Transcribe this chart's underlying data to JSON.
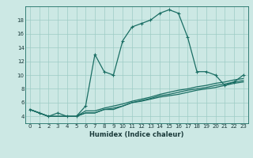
{
  "xlabel": "Humidex (Indice chaleur)",
  "background_color": "#cce8e4",
  "line_color": "#1a6e64",
  "grid_color": "#9eccc5",
  "xlim": [
    -0.5,
    23.5
  ],
  "ylim": [
    3.0,
    20.0
  ],
  "yticks": [
    4,
    6,
    8,
    10,
    12,
    14,
    16,
    18
  ],
  "xticks": [
    0,
    1,
    2,
    3,
    4,
    5,
    6,
    7,
    8,
    9,
    10,
    11,
    12,
    13,
    14,
    15,
    16,
    17,
    18,
    19,
    20,
    21,
    22,
    23
  ],
  "series1_x": [
    0,
    1,
    2,
    3,
    4,
    5,
    6,
    7,
    8,
    9,
    10,
    11,
    12,
    13,
    14,
    15,
    16,
    17,
    18,
    19,
    20,
    21,
    22,
    23
  ],
  "series1_y": [
    5.0,
    4.5,
    4.0,
    4.5,
    4.0,
    4.0,
    5.5,
    13.0,
    10.5,
    10.0,
    15.0,
    17.0,
    17.5,
    18.0,
    19.0,
    19.5,
    19.0,
    15.5,
    10.5,
    10.5,
    10.0,
    8.5,
    9.0,
    10.0
  ],
  "series2_x": [
    0,
    1,
    2,
    3,
    4,
    5,
    6,
    7,
    8,
    9,
    10,
    11,
    12,
    13,
    14,
    15,
    16,
    17,
    18,
    19,
    20,
    21,
    22,
    23
  ],
  "series2_y": [
    5.0,
    4.5,
    4.0,
    4.0,
    4.0,
    4.0,
    4.5,
    4.5,
    5.0,
    5.0,
    5.5,
    6.0,
    6.2,
    6.5,
    6.8,
    7.0,
    7.2,
    7.5,
    7.8,
    8.0,
    8.2,
    8.5,
    8.8,
    9.0
  ],
  "series3_x": [
    0,
    1,
    2,
    3,
    4,
    5,
    6,
    7,
    8,
    9,
    10,
    11,
    12,
    13,
    14,
    15,
    16,
    17,
    18,
    19,
    20,
    21,
    22,
    23
  ],
  "series3_y": [
    5.0,
    4.5,
    4.0,
    4.0,
    4.0,
    4.0,
    4.5,
    4.5,
    5.0,
    5.2,
    5.5,
    6.0,
    6.3,
    6.6,
    7.0,
    7.2,
    7.5,
    7.8,
    8.0,
    8.2,
    8.5,
    8.7,
    9.0,
    9.2
  ],
  "series4_x": [
    0,
    1,
    2,
    3,
    4,
    5,
    6,
    7,
    8,
    9,
    10,
    11,
    12,
    13,
    14,
    15,
    16,
    17,
    18,
    19,
    20,
    21,
    22,
    23
  ],
  "series4_y": [
    5.0,
    4.5,
    4.0,
    4.0,
    4.0,
    4.0,
    4.8,
    4.8,
    5.2,
    5.5,
    5.8,
    6.2,
    6.5,
    6.8,
    7.2,
    7.5,
    7.8,
    8.0,
    8.3,
    8.5,
    8.8,
    9.0,
    9.3,
    9.5
  ],
  "tick_fontsize": 5.0,
  "xlabel_fontsize": 6.0
}
